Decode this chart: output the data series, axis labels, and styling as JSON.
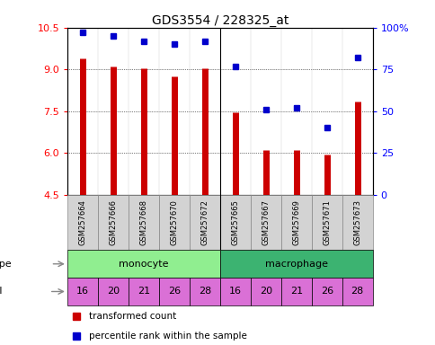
{
  "title": "GDS3554 / 228325_at",
  "samples": [
    "GSM257664",
    "GSM257666",
    "GSM257668",
    "GSM257670",
    "GSM257672",
    "GSM257665",
    "GSM257667",
    "GSM257669",
    "GSM257671",
    "GSM257673"
  ],
  "transformed_count": [
    9.4,
    9.1,
    9.05,
    8.75,
    9.05,
    7.45,
    6.1,
    6.1,
    5.95,
    7.85
  ],
  "percentile_rank": [
    97,
    95,
    92,
    90,
    92,
    77,
    51,
    52,
    40,
    82
  ],
  "ylim_left": [
    4.5,
    10.5
  ],
  "ylim_right": [
    0,
    100
  ],
  "yticks_left": [
    4.5,
    6.0,
    7.5,
    9.0,
    10.5
  ],
  "yticks_right": [
    0,
    25,
    50,
    75,
    100
  ],
  "cell_type_labels": [
    "monocyte",
    "macrophage"
  ],
  "cell_type_colors": [
    "#90EE90",
    "#3CB371"
  ],
  "individuals": [
    16,
    20,
    21,
    26,
    28,
    16,
    20,
    21,
    26,
    28
  ],
  "individual_color": "#DA70D6",
  "individual_border_color": "#AA00AA",
  "bar_color": "#CC0000",
  "dot_color": "#0000CC",
  "legend_labels": [
    "transformed count",
    "percentile rank within the sample"
  ],
  "sample_box_color": "#D3D3D3",
  "sample_box_border": "#888888"
}
